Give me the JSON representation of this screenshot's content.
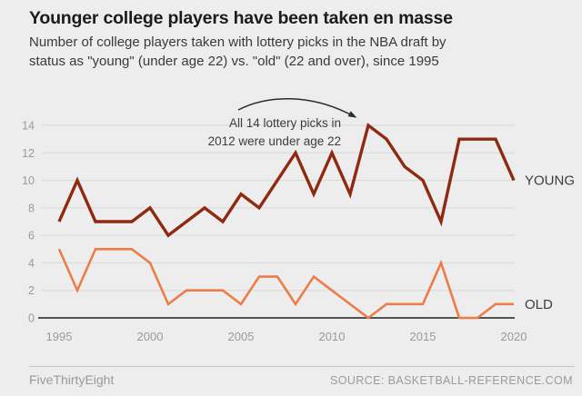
{
  "header": {
    "title": "Younger college players have been taken en masse",
    "subtitle_line1": "Number of college players taken with lottery picks in the NBA draft by",
    "subtitle_line2": "status as \"young\" (under age 22) vs. \"old\" (22 and over), since 1995"
  },
  "annotation": {
    "line1": "All 14 lottery picks in",
    "line2": "2012 were under age 22"
  },
  "chart_data": {
    "type": "line",
    "x": [
      1995,
      1996,
      1997,
      1998,
      1999,
      2000,
      2001,
      2002,
      2003,
      2004,
      2005,
      2006,
      2007,
      2008,
      2009,
      2010,
      2011,
      2012,
      2013,
      2014,
      2015,
      2016,
      2017,
      2018,
      2019,
      2020
    ],
    "series": [
      {
        "name": "YOUNG",
        "color": "#8f2a11",
        "width": 3.4,
        "values": [
          7,
          10,
          7,
          7,
          7,
          8,
          6,
          7,
          8,
          7,
          9,
          8,
          10,
          12,
          9,
          12,
          9,
          14,
          13,
          11,
          10,
          7,
          13,
          13,
          13,
          10
        ]
      },
      {
        "name": "OLD",
        "color": "#ec7d49",
        "width": 2.6,
        "values": [
          5,
          2,
          5,
          5,
          5,
          4,
          1,
          2,
          2,
          2,
          1,
          3,
          3,
          1,
          3,
          2,
          1,
          0,
          1,
          1,
          1,
          4,
          0,
          0,
          1,
          1
        ]
      }
    ],
    "xticks": [
      1995,
      2000,
      2005,
      2010,
      2015,
      2020
    ],
    "yticks": [
      0,
      2,
      4,
      6,
      8,
      10,
      12,
      14
    ],
    "ylim": [
      0,
      14
    ],
    "grid": true,
    "legend_position": "line-end-labels",
    "colors": {
      "grid": "#d8d8d8",
      "axis": "#1f1f1f",
      "tick_label": "#9a9a9a",
      "series_label": "#3d3d3d",
      "arrow": "#2b2b2b"
    }
  },
  "footer": {
    "brand": "FiveThirtyEight",
    "source": "SOURCE: BASKETBALL-REFERENCE.COM"
  }
}
